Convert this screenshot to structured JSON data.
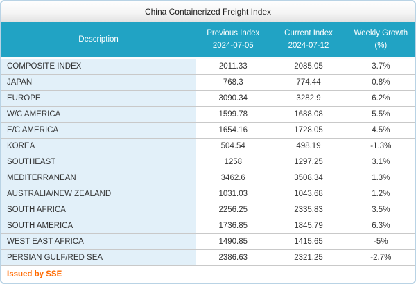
{
  "page_title": "China Containerized Freight Index",
  "header": {
    "columns": [
      {
        "label": "Description",
        "sublabel": ""
      },
      {
        "label": "Previous Index",
        "sublabel": "2024-07-05"
      },
      {
        "label": "Current Index",
        "sublabel": "2024-07-12"
      },
      {
        "label": "Weekly Growth",
        "sublabel": "(%)"
      }
    ]
  },
  "chart_data": {
    "type": "table",
    "title": "China Containerized Freight Index",
    "columns": [
      "Description",
      "Previous Index 2024-07-05",
      "Current Index 2024-07-12",
      "Weekly Growth (%)"
    ],
    "rows": [
      [
        "COMPOSITE INDEX",
        "2011.33",
        "2085.05",
        "3.7%"
      ],
      [
        "JAPAN",
        "768.3",
        "774.44",
        "0.8%"
      ],
      [
        "EUROPE",
        "3090.34",
        "3282.9",
        "6.2%"
      ],
      [
        "W/C AMERICA",
        "1599.78",
        "1688.08",
        "5.5%"
      ],
      [
        "E/C AMERICA",
        "1654.16",
        "1728.05",
        "4.5%"
      ],
      [
        "KOREA",
        "504.54",
        "498.19",
        "-1.3%"
      ],
      [
        "SOUTHEAST",
        "1258",
        "1297.25",
        "3.1%"
      ],
      [
        "MEDITERRANEAN",
        "3462.6",
        "3508.34",
        "1.3%"
      ],
      [
        "AUSTRALIA/NEW ZEALAND",
        "1031.03",
        "1043.68",
        "1.2%"
      ],
      [
        "SOUTH AFRICA",
        "2256.25",
        "2335.83",
        "3.5%"
      ],
      [
        "SOUTH AMERICA",
        "1736.85",
        "1845.79",
        "6.3%"
      ],
      [
        "WEST EAST AFRICA",
        "1490.85",
        "1415.65",
        "-5%"
      ],
      [
        "PERSIAN GULF/RED SEA",
        "2386.63",
        "2321.25",
        "-2.7%"
      ]
    ]
  },
  "footer": {
    "issued_by": "Issued by SSE"
  },
  "colors": {
    "header_bg": "#21A3C4",
    "description_cell_bg": "#E2F0F9",
    "accent_orange": "#FF6A00",
    "outer_border": "#B9D3E5",
    "row_border": "#C9C9C9"
  }
}
